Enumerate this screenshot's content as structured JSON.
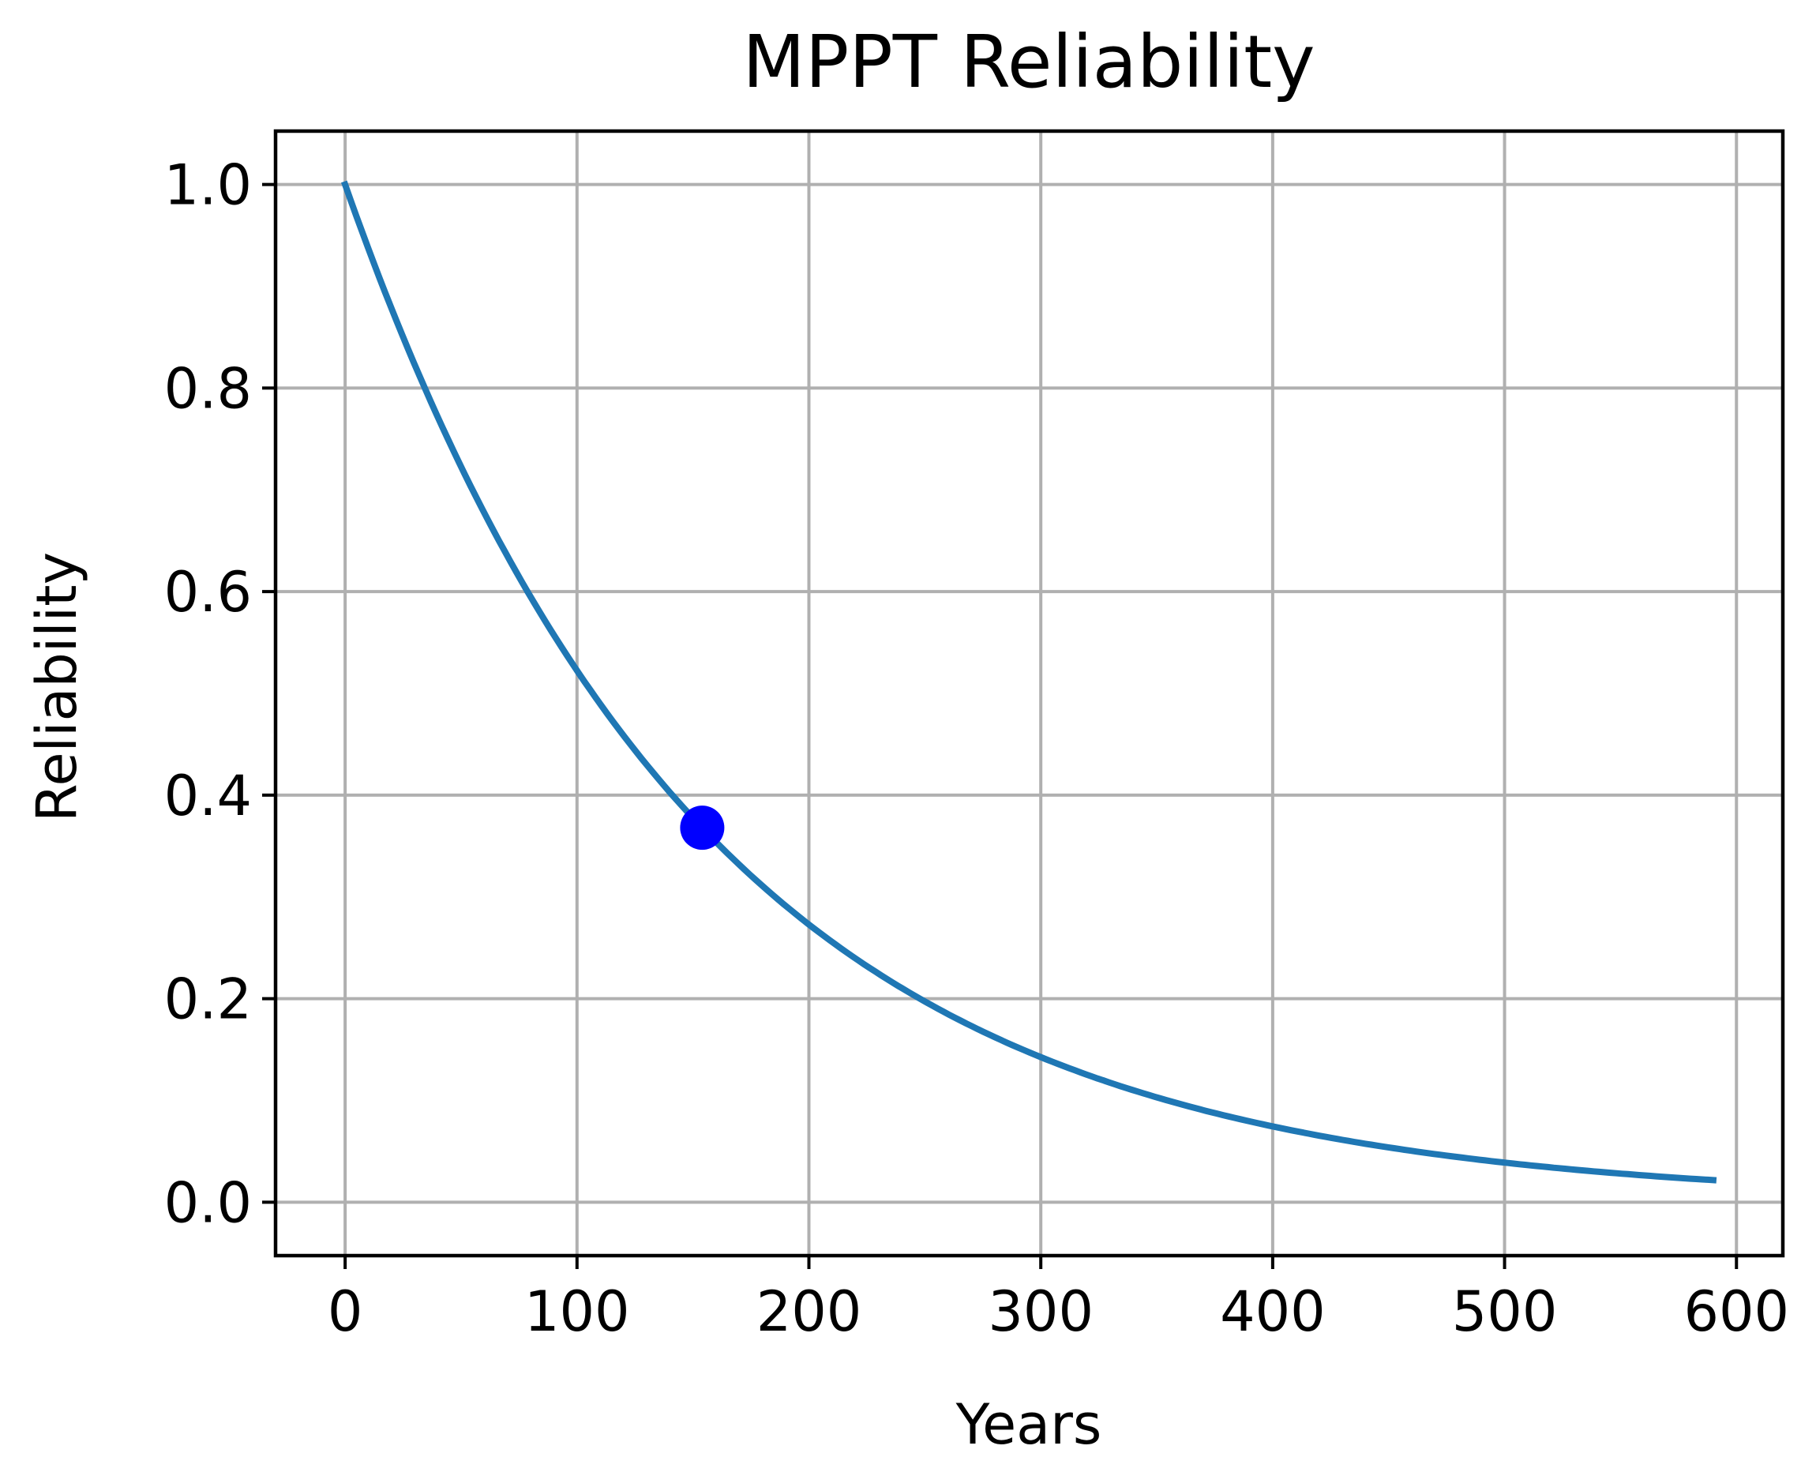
{
  "chart_data": {
    "type": "line",
    "title": "MPPT Reliability",
    "xlabel": "Years",
    "ylabel": "Reliability",
    "xlim": [
      -30,
      620
    ],
    "ylim": [
      -0.0525,
      1.0525
    ],
    "xticks": [
      0,
      100,
      200,
      300,
      400,
      500,
      600
    ],
    "yticks": [
      0.0,
      0.2,
      0.4,
      0.6,
      0.8,
      1.0
    ],
    "xtick_labels": [
      "0",
      "100",
      "200",
      "300",
      "400",
      "500",
      "600"
    ],
    "ytick_labels": [
      "0.0",
      "0.2",
      "0.4",
      "0.6",
      "0.8",
      "1.0"
    ],
    "grid": true,
    "series": [
      {
        "name": "reliability",
        "color": "#1f77b4",
        "model": "exponential",
        "mttf_years": 154,
        "x_range": [
          0,
          590
        ],
        "x": [
          0,
          50,
          100,
          154,
          200,
          300,
          400,
          500,
          590
        ],
        "y": [
          1.0,
          0.723,
          0.522,
          0.368,
          0.273,
          0.142,
          0.074,
          0.039,
          0.022
        ]
      }
    ],
    "marker": {
      "x": 154,
      "y": 0.368,
      "color": "#0000ff"
    }
  }
}
